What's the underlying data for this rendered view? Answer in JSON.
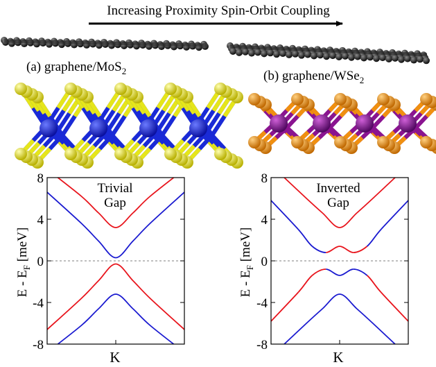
{
  "figure": {
    "header": "Increasing Proximity Spin-Orbit Coupling",
    "colors": {
      "red": "#e8141c",
      "blue": "#1a1ad0",
      "sulfur": "#e6e61a",
      "molybdenum": "#1a2ad6",
      "selenium": "#f09010",
      "tungsten": "#8a1490",
      "carbon": "#1a1a1a"
    },
    "panels": [
      {
        "id": "a",
        "label_prefix": "(a) graphene/MoS",
        "label_sub": "2",
        "gap_line1": "Trivial",
        "gap_line2": "Gap"
      },
      {
        "id": "b",
        "label_prefix": "(b) graphene/WSe",
        "label_sub": "2",
        "gap_line1": "Inverted",
        "gap_line2": "Gap"
      }
    ]
  },
  "chart_data": [
    {
      "type": "line",
      "xlabel": "K",
      "ylabel_main": "E - E",
      "ylabel_sub": "F",
      "ylabel_unit": " [meV]",
      "ylim": [
        -8,
        8
      ],
      "yticks": [
        8,
        4,
        0,
        -4,
        -8
      ],
      "xlim": [
        -1,
        1
      ],
      "reference_line": 0,
      "series": [
        {
          "color": "red",
          "x": [
            -1,
            -0.5,
            -0.25,
            0,
            0.25,
            0.5,
            1
          ],
          "y": [
            8.8,
            6.2,
            4.6,
            3.2,
            4.6,
            6.2,
            8.8
          ]
        },
        {
          "color": "blue",
          "x": [
            -1,
            -0.5,
            -0.25,
            0,
            0.25,
            0.5,
            1
          ],
          "y": [
            6.6,
            3.6,
            1.9,
            0.3,
            1.9,
            3.6,
            6.6
          ]
        },
        {
          "color": "red",
          "x": [
            -1,
            -0.5,
            -0.25,
            0,
            0.25,
            0.5,
            1
          ],
          "y": [
            -6.6,
            -3.6,
            -1.9,
            -0.3,
            -1.9,
            -3.6,
            -6.6
          ]
        },
        {
          "color": "blue",
          "x": [
            -1,
            -0.5,
            -0.25,
            0,
            0.25,
            0.5,
            1
          ],
          "y": [
            -8.8,
            -6.2,
            -4.6,
            -3.2,
            -4.6,
            -6.2,
            -8.8
          ]
        }
      ]
    },
    {
      "type": "line",
      "xlabel": "K",
      "ylabel_main": "E - E",
      "ylabel_sub": "F",
      "ylabel_unit": " [meV]",
      "ylim": [
        -8,
        8
      ],
      "yticks": [
        8,
        4,
        0,
        -4,
        -8
      ],
      "xlim": [
        -1,
        1
      ],
      "reference_line": 0,
      "series": [
        {
          "color": "red",
          "x": [
            -1,
            -0.5,
            -0.25,
            0,
            0.25,
            0.5,
            1
          ],
          "y": [
            9.2,
            6.1,
            4.6,
            3.2,
            4.6,
            6.1,
            9.2
          ]
        },
        {
          "color": "mixed",
          "x": [
            -1,
            -0.6,
            -0.4,
            -0.2,
            0,
            0.2,
            0.4,
            0.6,
            1
          ],
          "y": [
            5.8,
            3.0,
            1.4,
            0.8,
            1.4,
            0.8,
            1.4,
            3.0,
            5.8
          ],
          "colors": [
            "blue",
            "blue",
            "blue",
            "red",
            "red",
            "red",
            "blue",
            "blue"
          ]
        },
        {
          "color": "mixed",
          "x": [
            -1,
            -0.6,
            -0.4,
            -0.2,
            0,
            0.2,
            0.4,
            0.6,
            1
          ],
          "y": [
            -5.8,
            -3.0,
            -1.4,
            -0.8,
            -1.4,
            -0.8,
            -1.4,
            -3.0,
            -5.8
          ],
          "colors": [
            "red",
            "red",
            "red",
            "blue",
            "blue",
            "blue",
            "red",
            "red"
          ]
        },
        {
          "color": "blue",
          "x": [
            -1,
            -0.5,
            -0.25,
            0,
            0.25,
            0.5,
            1
          ],
          "y": [
            -9.2,
            -6.1,
            -4.6,
            -3.2,
            -4.6,
            -6.1,
            -9.2
          ]
        }
      ]
    }
  ]
}
